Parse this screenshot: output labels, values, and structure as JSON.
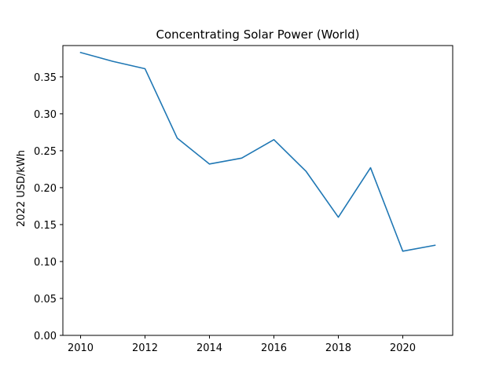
{
  "chart_data": {
    "type": "line",
    "title": "Concentrating Solar Power (World)",
    "xlabel": "",
    "ylabel": "2022 USD/kWh",
    "x": [
      2010,
      2011,
      2012,
      2013,
      2014,
      2015,
      2016,
      2017,
      2018,
      2019,
      2020,
      2021
    ],
    "series": [
      {
        "values": [
          0.383,
          0.371,
          0.361,
          0.267,
          0.232,
          0.24,
          0.265,
          0.222,
          0.16,
          0.227,
          0.114,
          0.122
        ]
      }
    ],
    "xlim": [
      2009.45,
      2021.55
    ],
    "ylim": [
      0,
      0.3924
    ],
    "xticks": [
      2010,
      2012,
      2014,
      2016,
      2018,
      2020
    ],
    "yticks": [
      0.0,
      0.05,
      0.1,
      0.15,
      0.2,
      0.25,
      0.3,
      0.35
    ],
    "line_color": "#1f77b4",
    "grid": false
  }
}
